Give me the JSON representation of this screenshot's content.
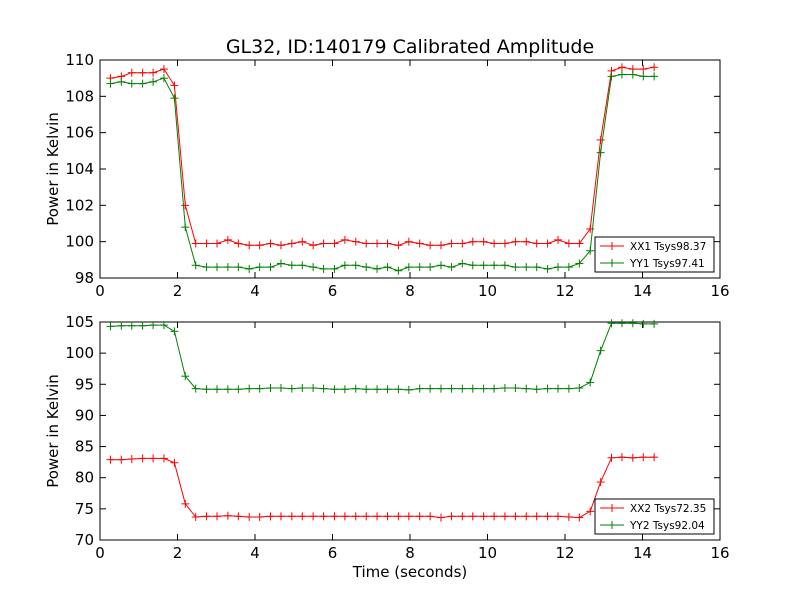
{
  "chart_data": [
    {
      "type": "line",
      "title": "GL32, ID:140179 Calibrated Amplitude",
      "xlabel": "",
      "ylabel": "Power in Kelvin",
      "xlim": [
        0,
        16
      ],
      "ylim": [
        98,
        110
      ],
      "xticks": [
        "0",
        "2",
        "4",
        "6",
        "8",
        "10",
        "12",
        "14",
        "16"
      ],
      "yticks": [
        "98",
        "100",
        "102",
        "104",
        "106",
        "108",
        "110"
      ],
      "legend_position": "lower-right",
      "x": [
        0.27,
        0.55,
        0.82,
        1.1,
        1.37,
        1.65,
        1.92,
        2.2,
        2.47,
        2.75,
        3.02,
        3.3,
        3.57,
        3.85,
        4.12,
        4.4,
        4.67,
        4.95,
        5.22,
        5.5,
        5.77,
        6.05,
        6.32,
        6.6,
        6.87,
        7.15,
        7.42,
        7.7,
        7.97,
        8.25,
        8.52,
        8.8,
        9.07,
        9.35,
        9.62,
        9.9,
        10.17,
        10.45,
        10.72,
        11.0,
        11.27,
        11.55,
        11.82,
        12.1,
        12.37,
        12.65,
        12.92,
        13.2,
        13.47,
        13.75,
        14.02,
        14.3
      ],
      "series": [
        {
          "name": "XX1 Tsys98.37",
          "color": "#ff0000",
          "values": [
            109.0,
            109.1,
            109.3,
            109.3,
            109.3,
            109.5,
            108.6,
            102.0,
            99.9,
            99.9,
            99.9,
            100.1,
            99.9,
            99.8,
            99.8,
            99.9,
            99.8,
            99.9,
            100.0,
            99.8,
            99.9,
            99.9,
            100.1,
            100.0,
            99.9,
            99.9,
            99.9,
            99.8,
            100.0,
            99.9,
            99.8,
            99.8,
            99.9,
            99.9,
            100.0,
            100.0,
            99.9,
            99.9,
            100.0,
            100.0,
            99.9,
            99.9,
            100.1,
            99.9,
            99.9,
            100.7,
            105.6,
            109.4,
            109.6,
            109.5,
            109.5,
            109.6
          ]
        },
        {
          "name": "YY1 Tsys97.41",
          "color": "#008000",
          "values": [
            108.7,
            108.8,
            108.7,
            108.7,
            108.8,
            109.0,
            107.9,
            100.8,
            98.7,
            98.6,
            98.6,
            98.6,
            98.6,
            98.5,
            98.6,
            98.6,
            98.8,
            98.7,
            98.7,
            98.6,
            98.5,
            98.5,
            98.7,
            98.7,
            98.6,
            98.5,
            98.6,
            98.4,
            98.6,
            98.6,
            98.6,
            98.7,
            98.6,
            98.8,
            98.7,
            98.7,
            98.7,
            98.7,
            98.6,
            98.6,
            98.6,
            98.5,
            98.6,
            98.6,
            98.8,
            99.5,
            104.9,
            109.1,
            109.2,
            109.2,
            109.1,
            109.1
          ]
        }
      ]
    },
    {
      "type": "line",
      "title": "",
      "xlabel": "Time (seconds)",
      "ylabel": "Power in Kelvin",
      "xlim": [
        0,
        16
      ],
      "ylim": [
        70,
        105
      ],
      "xticks": [
        "0",
        "2",
        "4",
        "6",
        "8",
        "10",
        "12",
        "14",
        "16"
      ],
      "yticks": [
        "70",
        "75",
        "80",
        "85",
        "90",
        "95",
        "100",
        "105"
      ],
      "legend_position": "lower-right",
      "x": [
        0.27,
        0.55,
        0.82,
        1.1,
        1.37,
        1.65,
        1.92,
        2.2,
        2.47,
        2.75,
        3.02,
        3.3,
        3.57,
        3.85,
        4.12,
        4.4,
        4.67,
        4.95,
        5.22,
        5.5,
        5.77,
        6.05,
        6.32,
        6.6,
        6.87,
        7.15,
        7.42,
        7.7,
        7.97,
        8.25,
        8.52,
        8.8,
        9.07,
        9.35,
        9.62,
        9.9,
        10.17,
        10.45,
        10.72,
        11.0,
        11.27,
        11.55,
        11.82,
        12.1,
        12.37,
        12.65,
        12.92,
        13.2,
        13.47,
        13.75,
        14.02,
        14.3
      ],
      "series": [
        {
          "name": "XX2 Tsys72.35",
          "color": "#ff0000",
          "values": [
            82.9,
            82.9,
            83.0,
            83.1,
            83.1,
            83.1,
            82.4,
            75.8,
            73.7,
            73.8,
            73.8,
            73.9,
            73.8,
            73.7,
            73.7,
            73.8,
            73.8,
            73.8,
            73.8,
            73.8,
            73.8,
            73.8,
            73.8,
            73.8,
            73.8,
            73.8,
            73.8,
            73.8,
            73.8,
            73.8,
            73.8,
            73.6,
            73.8,
            73.8,
            73.8,
            73.8,
            73.8,
            73.8,
            73.8,
            73.8,
            73.8,
            73.8,
            73.8,
            73.7,
            73.6,
            74.6,
            79.3,
            83.2,
            83.3,
            83.2,
            83.3,
            83.3
          ]
        },
        {
          "name": "YY2 Tsys92.04",
          "color": "#008000",
          "values": [
            104.3,
            104.4,
            104.4,
            104.4,
            104.5,
            104.5,
            103.5,
            96.3,
            94.3,
            94.2,
            94.2,
            94.2,
            94.2,
            94.3,
            94.3,
            94.4,
            94.4,
            94.3,
            94.4,
            94.4,
            94.3,
            94.2,
            94.2,
            94.3,
            94.2,
            94.2,
            94.2,
            94.2,
            94.1,
            94.3,
            94.3,
            94.3,
            94.3,
            94.3,
            94.3,
            94.3,
            94.3,
            94.4,
            94.4,
            94.3,
            94.2,
            94.3,
            94.3,
            94.3,
            94.4,
            95.3,
            100.4,
            104.8,
            104.8,
            104.8,
            104.7,
            104.7
          ]
        }
      ]
    }
  ]
}
